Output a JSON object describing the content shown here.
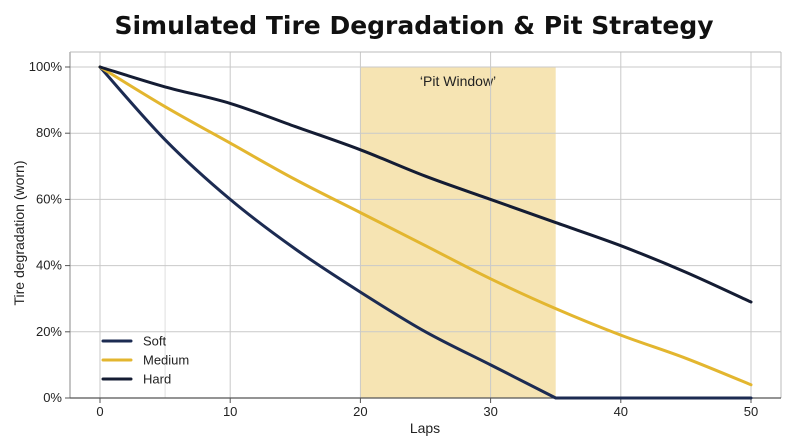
{
  "chart_data": {
    "type": "line",
    "title": "Simulated Tire Degradation & Pit Strategy",
    "xlabel": "Laps",
    "ylabel": "Tire degradation (worn)",
    "xlim": [
      0,
      50
    ],
    "ylim": [
      0,
      100
    ],
    "x_ticks": [
      "0",
      "10",
      "20",
      "30",
      "40",
      "50"
    ],
    "y_ticks": [
      "0%",
      "20%",
      "40%",
      "60%",
      "80%",
      "100%"
    ],
    "x_tick_values": [
      0,
      10,
      20,
      30,
      40,
      50
    ],
    "y_tick_values": [
      0,
      20,
      40,
      60,
      80,
      100
    ],
    "grid": true,
    "legend_position": "bottom-left",
    "x": [
      0,
      5,
      10,
      15,
      20,
      25,
      30,
      35,
      40,
      45,
      50
    ],
    "series": [
      {
        "name": "Soft",
        "color": "#1c2b52",
        "values": [
          100,
          78,
          60,
          45,
          32,
          20,
          10,
          0,
          0,
          0,
          0
        ]
      },
      {
        "name": "Medium",
        "color": "#e3b62f",
        "values": [
          100,
          88,
          77,
          66,
          56,
          46,
          36,
          27,
          19,
          12,
          4
        ]
      },
      {
        "name": "Hard",
        "color": "#141c33",
        "values": [
          100,
          94,
          89,
          82,
          75,
          67,
          60,
          53,
          46,
          38,
          29
        ]
      }
    ],
    "annotations": [
      {
        "type": "span",
        "x_start": 20,
        "x_end": 35,
        "label": "‘Pit Window’",
        "color": "#f6e4b3"
      }
    ]
  }
}
